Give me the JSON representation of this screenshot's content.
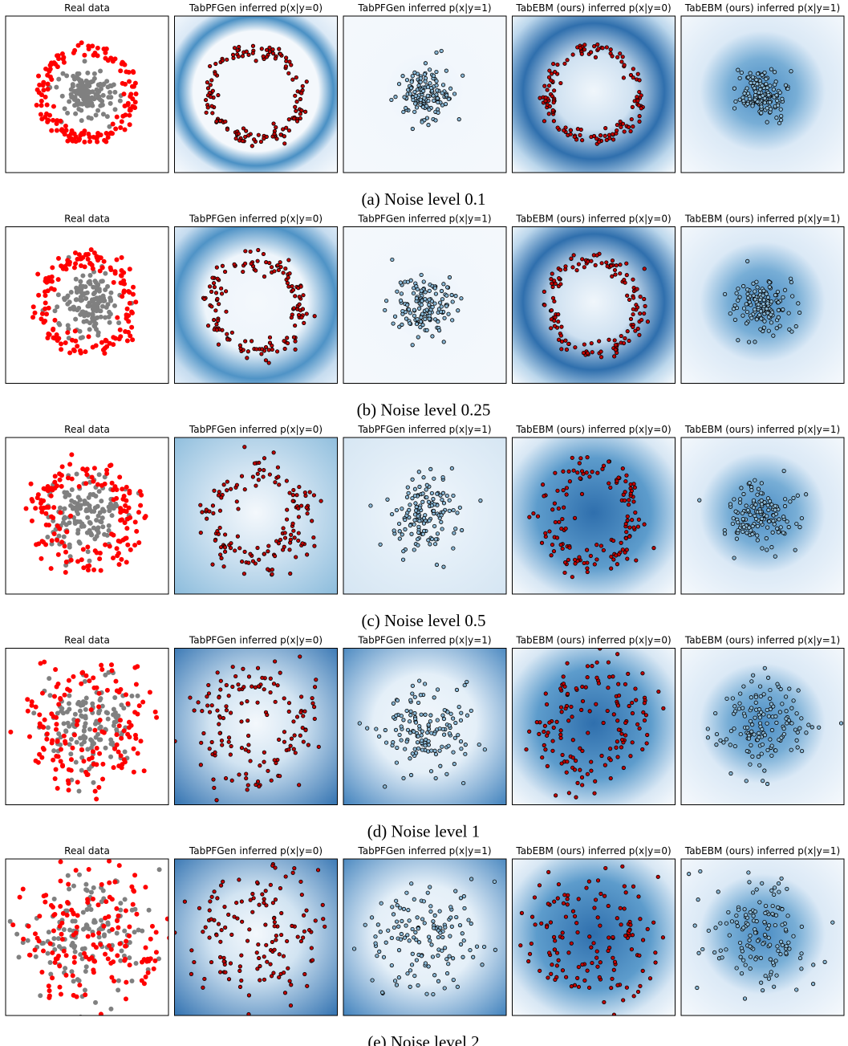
{
  "rows": [
    {
      "titles": [
        "Real data",
        "TabPFGen inferred p(x|y=0)",
        "TabPFGen inferred p(x|y=1)",
        "TabEBM (ours) inferred p(x|y=0)",
        "TabEBM (ours) inferred p(x|y=1)"
      ],
      "caption": "(a) Noise level 0.1"
    },
    {
      "titles": [
        "Real data",
        "TabPFGen inferred p(x|y=0)",
        "TabPFGen inferred p(x|y=1)",
        "TabEBM (ours) inferred p(x|y=0)",
        "TabEBM (ours) inferred p(x|y=1)"
      ],
      "caption": "(b) Noise level 0.25"
    },
    {
      "titles": [
        "Real data",
        "TabPFGen inferred p(x|y=0)",
        "TabPFGen inferred p(x|y=1)",
        "TabEBM (ours) inferred p(x|y=0)",
        "TabEBM (ours) inferred p(x|y=1)"
      ],
      "caption": "(c) Noise level 0.5"
    },
    {
      "titles": [
        "Real data",
        "TabPFGen inferred p(x|y=0)",
        "TabPFGen inferred p(x|y=1)",
        "TabEBM (ours) inferred p(x|y=0)",
        "TabEBM (ours) inferred p(x|y=1)"
      ],
      "caption": "(d) Noise level 1"
    },
    {
      "titles": [
        "Real data",
        "TabPFGen inferred p(x|y=0)",
        "TabPFGen inferred p(x|y=1)",
        "TabEBM (ours) inferred p(x|y=0)",
        "TabEBM (ours) inferred p(x|y=1)"
      ],
      "caption": "(e) Noise level 2"
    }
  ]
}
